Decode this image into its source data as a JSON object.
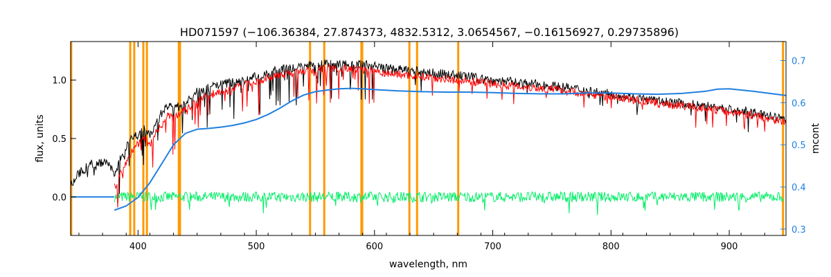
{
  "chart_data": {
    "type": "line",
    "title": "HD071597    (−106.36384, 27.874373, 4832.5312, 3.0654567, −0.16156927, 0.29735896)",
    "xlabel": "wavelength, nm",
    "ylabel": "flux, units",
    "y2label": "mcont",
    "xlim": [
      343,
      948
    ],
    "ylim": [
      -0.33,
      1.33
    ],
    "y2lim": [
      0.285,
      0.745
    ],
    "xticks": [
      400,
      500,
      600,
      700,
      800,
      900
    ],
    "yticks": [
      0.0,
      0.5,
      1.0
    ],
    "y2ticks": [
      0.3,
      0.4,
      0.5,
      0.6,
      0.7
    ],
    "ytick_labels": [
      "0.0",
      "0.5",
      "1.0"
    ],
    "y2tick_labels": [
      "0.3",
      "0.4",
      "0.5",
      "0.6",
      "0.7"
    ],
    "grid": false,
    "colors": {
      "observed": "#000000",
      "model": "#ff0000",
      "residual": "#00ee66",
      "continuum": "#1f7fe0",
      "mask": "#ff9900",
      "axis2": "#1f7fe0"
    },
    "mask_lines_nm": [
      343.5,
      393.4,
      396.8,
      404.5,
      407.5,
      434.5,
      435.5,
      545.5,
      557.5,
      588.9,
      589.6,
      629.5,
      636.0,
      670.8,
      945.5
    ],
    "series": [
      {
        "key": "observed",
        "x": [
          343,
          350,
          360,
          370,
          378,
          380,
          385,
          390,
          395,
          400,
          405,
          410,
          415,
          420,
          425,
          430,
          440,
          450,
          460,
          470,
          480,
          490,
          500,
          510,
          520,
          530,
          540,
          550,
          560,
          570,
          580,
          590,
          600,
          610,
          620,
          630,
          640,
          650,
          660,
          670,
          680,
          690,
          700,
          720,
          740,
          760,
          780,
          800,
          820,
          840,
          860,
          880,
          900,
          920,
          940,
          948
        ],
        "y": [
          0.1,
          0.2,
          0.28,
          0.3,
          0.25,
          0.2,
          0.32,
          0.42,
          0.5,
          0.53,
          0.6,
          0.52,
          0.62,
          0.72,
          0.78,
          0.75,
          0.8,
          0.9,
          0.93,
          0.97,
          0.98,
          1.0,
          1.03,
          1.06,
          1.09,
          1.1,
          1.12,
          1.13,
          1.14,
          1.14,
          1.14,
          1.13,
          1.12,
          1.1,
          1.09,
          1.08,
          1.07,
          1.06,
          1.05,
          1.04,
          1.03,
          1.01,
          1.0,
          0.98,
          0.96,
          0.94,
          0.91,
          0.88,
          0.85,
          0.82,
          0.8,
          0.78,
          0.75,
          0.72,
          0.68,
          0.66
        ]
      },
      {
        "key": "model",
        "x": [
          380,
          385,
          390,
          395,
          400,
          405,
          410,
          415,
          420,
          425,
          430,
          440,
          450,
          460,
          470,
          480,
          490,
          500,
          510,
          520,
          530,
          540,
          550,
          560,
          570,
          580,
          590,
          600,
          610,
          620,
          630,
          640,
          650,
          660,
          670,
          680,
          690,
          700,
          720,
          740,
          760,
          780,
          800,
          820,
          840,
          860,
          880,
          900,
          920,
          940,
          948
        ],
        "y": [
          0.08,
          0.2,
          0.3,
          0.4,
          0.45,
          0.5,
          0.45,
          0.55,
          0.62,
          0.7,
          0.68,
          0.75,
          0.82,
          0.87,
          0.9,
          0.92,
          0.96,
          0.98,
          1.02,
          1.04,
          1.06,
          1.08,
          1.09,
          1.1,
          1.1,
          1.1,
          1.09,
          1.08,
          1.06,
          1.05,
          1.04,
          1.03,
          1.02,
          1.01,
          1.0,
          0.99,
          0.98,
          0.97,
          0.95,
          0.93,
          0.91,
          0.88,
          0.86,
          0.83,
          0.8,
          0.78,
          0.76,
          0.73,
          0.7,
          0.66,
          0.64
        ]
      },
      {
        "key": "residual",
        "x": [
          380,
          948
        ],
        "y": [
          0.0,
          0.0
        ]
      },
      {
        "key": "continuum",
        "axis": "y2",
        "x": [
          380,
          390,
          400,
          410,
          420,
          430,
          440,
          450,
          460,
          470,
          480,
          490,
          500,
          510,
          520,
          530,
          540,
          550,
          560,
          570,
          580,
          590,
          600,
          620,
          640,
          660,
          680,
          700,
          720,
          740,
          760,
          780,
          800,
          820,
          840,
          860,
          880,
          890,
          900,
          920,
          940,
          948
        ],
        "y": [
          0.345,
          0.355,
          0.375,
          0.41,
          0.455,
          0.5,
          0.527,
          0.537,
          0.539,
          0.542,
          0.546,
          0.552,
          0.56,
          0.572,
          0.587,
          0.604,
          0.618,
          0.626,
          0.63,
          0.633,
          0.634,
          0.633,
          0.631,
          0.628,
          0.626,
          0.625,
          0.625,
          0.624,
          0.622,
          0.621,
          0.621,
          0.623,
          0.623,
          0.621,
          0.62,
          0.622,
          0.627,
          0.632,
          0.633,
          0.627,
          0.62,
          0.617
        ]
      },
      {
        "key": "flat",
        "x": [
          343,
          380
        ],
        "y": [
          0.0,
          0.0
        ]
      }
    ]
  }
}
